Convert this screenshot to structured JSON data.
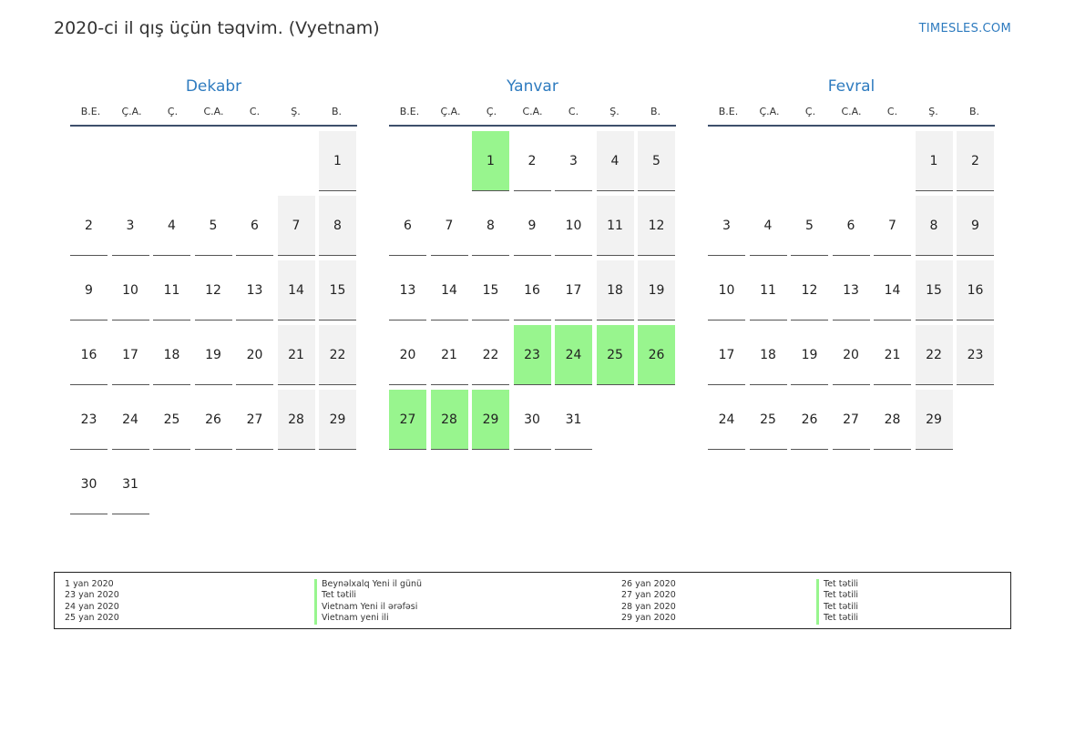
{
  "header": {
    "title": "2020-ci il qış üçün təqvim. (Vyetnam)",
    "site": "TIMESLES.COM"
  },
  "weekdays": [
    "B.E.",
    "Ç.A.",
    "Ç.",
    "C.A.",
    "C.",
    "Ş.",
    "B."
  ],
  "colors": {
    "accent": "#2e7bbf",
    "holiday": "#98f58e",
    "weekend": "#f2f2f2"
  },
  "months": [
    {
      "name": "Dekabr",
      "start_offset": 6,
      "days": 31,
      "holidays": []
    },
    {
      "name": "Yanvar",
      "start_offset": 2,
      "days": 31,
      "holidays": [
        1,
        23,
        24,
        25,
        26,
        27,
        28,
        29
      ]
    },
    {
      "name": "Fevral",
      "start_offset": 5,
      "days": 29,
      "holidays": []
    }
  ],
  "legend": {
    "left": [
      {
        "date": "1 yan 2020",
        "name": "Beynəlxalq Yeni il günü"
      },
      {
        "date": "23 yan 2020",
        "name": "Tet tətili"
      },
      {
        "date": "24 yan 2020",
        "name": "Vietnam Yeni il ərəfəsi"
      },
      {
        "date": "25 yan 2020",
        "name": "Vietnam yeni ili"
      }
    ],
    "right": [
      {
        "date": "26 yan 2020",
        "name": "Tet tətili"
      },
      {
        "date": "27 yan 2020",
        "name": "Tet tətili"
      },
      {
        "date": "28 yan 2020",
        "name": "Tet tətili"
      },
      {
        "date": "29 yan 2020",
        "name": "Tet tətili"
      }
    ]
  }
}
